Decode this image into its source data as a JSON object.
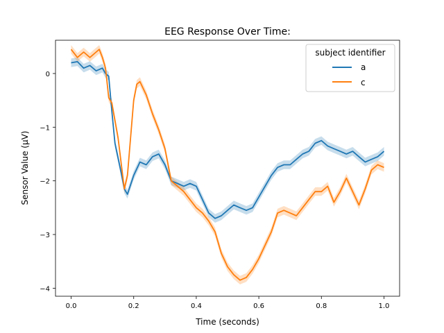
{
  "chart_data": {
    "type": "line",
    "title": "EEG Response Over Time:",
    "xlabel": "Time (seconds)",
    "ylabel": "Sensor Value (µV)",
    "xlim": [
      -0.05,
      1.05
    ],
    "ylim": [
      -4.15,
      0.62
    ],
    "xticks": [
      0.0,
      0.2,
      0.4,
      0.6,
      0.8,
      1.0
    ],
    "xtick_labels": [
      "0.0",
      "0.2",
      "0.4",
      "0.6",
      "0.8",
      "1.0"
    ],
    "yticks": [
      0,
      -1,
      -2,
      -3,
      -4
    ],
    "ytick_labels": [
      "0",
      "−1",
      "−2",
      "−3",
      "−4"
    ],
    "grid": false,
    "legend": {
      "title": "subject identifier",
      "placement": "top-right"
    },
    "colors": {
      "a": "#1f77b4",
      "c": "#ff7f0e"
    },
    "band_halfwidth": 0.08,
    "series": [
      {
        "name": "a",
        "x": [
          0.0,
          0.02,
          0.04,
          0.06,
          0.08,
          0.1,
          0.11,
          0.12,
          0.13,
          0.14,
          0.16,
          0.17,
          0.18,
          0.2,
          0.22,
          0.24,
          0.26,
          0.28,
          0.3,
          0.32,
          0.34,
          0.36,
          0.38,
          0.4,
          0.42,
          0.44,
          0.46,
          0.48,
          0.5,
          0.52,
          0.54,
          0.56,
          0.58,
          0.6,
          0.62,
          0.64,
          0.66,
          0.68,
          0.7,
          0.72,
          0.74,
          0.76,
          0.78,
          0.8,
          0.82,
          0.84,
          0.86,
          0.88,
          0.9,
          0.92,
          0.94,
          0.96,
          0.98,
          1.0
        ],
        "y": [
          0.2,
          0.22,
          0.1,
          0.15,
          0.05,
          0.1,
          0.0,
          -0.05,
          -0.7,
          -1.3,
          -1.85,
          -2.15,
          -2.25,
          -1.9,
          -1.65,
          -1.7,
          -1.55,
          -1.5,
          -1.7,
          -2.0,
          -2.05,
          -2.1,
          -2.05,
          -2.1,
          -2.35,
          -2.6,
          -2.7,
          -2.65,
          -2.55,
          -2.45,
          -2.5,
          -2.55,
          -2.5,
          -2.3,
          -2.1,
          -1.9,
          -1.75,
          -1.7,
          -1.7,
          -1.6,
          -1.5,
          -1.45,
          -1.3,
          -1.25,
          -1.35,
          -1.4,
          -1.45,
          -1.5,
          -1.45,
          -1.55,
          -1.65,
          -1.6,
          -1.55,
          -1.45
        ]
      },
      {
        "name": "c",
        "x": [
          0.0,
          0.02,
          0.04,
          0.06,
          0.08,
          0.09,
          0.1,
          0.11,
          0.12,
          0.13,
          0.15,
          0.17,
          0.18,
          0.19,
          0.2,
          0.21,
          0.22,
          0.24,
          0.26,
          0.28,
          0.3,
          0.32,
          0.34,
          0.36,
          0.38,
          0.4,
          0.42,
          0.44,
          0.46,
          0.48,
          0.5,
          0.52,
          0.54,
          0.56,
          0.58,
          0.6,
          0.62,
          0.64,
          0.66,
          0.68,
          0.7,
          0.72,
          0.74,
          0.76,
          0.78,
          0.8,
          0.82,
          0.84,
          0.86,
          0.88,
          0.9,
          0.92,
          0.94,
          0.96,
          0.98,
          1.0
        ],
        "y": [
          0.45,
          0.3,
          0.4,
          0.3,
          0.4,
          0.45,
          0.3,
          0.1,
          -0.45,
          -0.55,
          -1.2,
          -2.15,
          -1.9,
          -1.2,
          -0.5,
          -0.2,
          -0.15,
          -0.4,
          -0.75,
          -1.05,
          -1.4,
          -2.0,
          -2.1,
          -2.2,
          -2.35,
          -2.5,
          -2.6,
          -2.75,
          -2.95,
          -3.35,
          -3.6,
          -3.75,
          -3.85,
          -3.8,
          -3.65,
          -3.45,
          -3.2,
          -2.95,
          -2.6,
          -2.55,
          -2.6,
          -2.65,
          -2.5,
          -2.35,
          -2.2,
          -2.2,
          -2.1,
          -2.4,
          -2.2,
          -1.95,
          -2.2,
          -2.45,
          -2.15,
          -1.8,
          -1.7,
          -1.75
        ]
      }
    ]
  }
}
